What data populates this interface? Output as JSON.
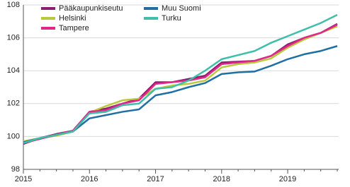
{
  "chart_data": {
    "type": "line",
    "categories": [
      "2015",
      null,
      null,
      null,
      "2016",
      null,
      null,
      null,
      "2017",
      null,
      null,
      null,
      "2018",
      null,
      null,
      null,
      "2019",
      null,
      null,
      null
    ],
    "series": [
      {
        "name": "Pääkaupunkiseutu",
        "color": "#8c1d6f",
        "values": [
          99.55,
          99.9,
          100.15,
          100.35,
          101.5,
          101.7,
          102.0,
          102.3,
          103.3,
          103.3,
          103.5,
          103.7,
          104.5,
          104.55,
          104.6,
          104.9,
          105.6,
          106.0,
          106.3,
          106.85
        ]
      },
      {
        "name": "Helsinki",
        "color": "#b9c93b",
        "values": [
          99.7,
          99.9,
          100.05,
          100.3,
          101.45,
          101.85,
          102.2,
          102.3,
          102.9,
          103.1,
          103.2,
          103.4,
          104.2,
          104.4,
          104.5,
          104.75,
          105.4,
          105.9,
          106.3,
          106.7
        ]
      },
      {
        "name": "Tampere",
        "color": "#e0288a",
        "values": [
          99.6,
          99.85,
          100.1,
          100.35,
          101.5,
          101.6,
          102.0,
          102.2,
          103.2,
          103.3,
          103.4,
          103.6,
          104.4,
          104.5,
          104.6,
          104.9,
          105.5,
          106.0,
          106.3,
          106.8
        ]
      },
      {
        "name": "Muu Suomi",
        "color": "#1f6fa3",
        "values": [
          99.65,
          99.9,
          100.1,
          100.3,
          101.1,
          101.3,
          101.5,
          101.65,
          102.5,
          102.7,
          103.0,
          103.25,
          103.8,
          103.9,
          103.95,
          104.3,
          104.7,
          105.0,
          105.2,
          105.5
        ]
      },
      {
        "name": "Turku",
        "color": "#3fbfaa",
        "values": [
          99.6,
          99.9,
          100.1,
          100.3,
          101.4,
          101.5,
          101.9,
          102.0,
          102.9,
          103.0,
          103.4,
          104.0,
          104.7,
          104.95,
          105.2,
          105.7,
          106.1,
          106.5,
          106.9,
          107.4
        ]
      }
    ],
    "ylim": [
      98,
      108
    ],
    "yticks": [
      98,
      100,
      102,
      104,
      106,
      108
    ],
    "grid": true,
    "legend": "upper left"
  }
}
